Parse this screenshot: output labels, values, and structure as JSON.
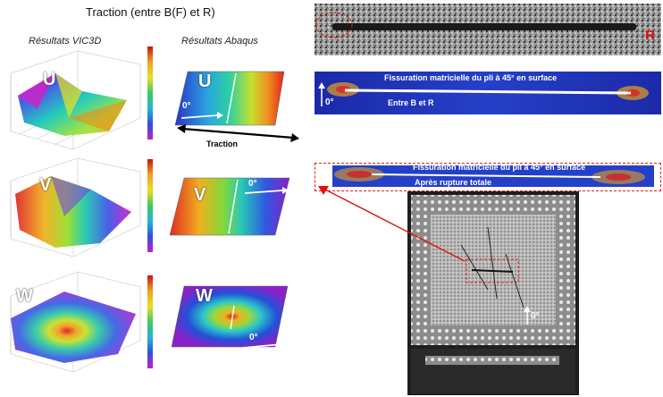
{
  "title": "Traction (entre B(F) et R)",
  "left": {
    "header_vic": "Résultats VIC3D",
    "header_abaqus": "Résultats Abaqus",
    "plots": [
      {
        "letter": "U"
      },
      {
        "letter": "V"
      },
      {
        "letter": "W"
      }
    ],
    "traction_label": "Traction",
    "angle_label": "0°"
  },
  "right": {
    "r_label": "R",
    "panel1_text1": "Fissuration matricielle du pli à 45° en surface",
    "panel1_text2": "Entre B et R",
    "panel1_angle": "0°",
    "panel2_text1": "Fissuration matricielle du pli à 45° en surface",
    "panel2_text2": "Après rupture totale",
    "photo_angle": "0°"
  },
  "colors": {
    "arrow_red": "#e01010",
    "dash_red": "#e02020",
    "fe_blue": "#1a2fb8"
  }
}
